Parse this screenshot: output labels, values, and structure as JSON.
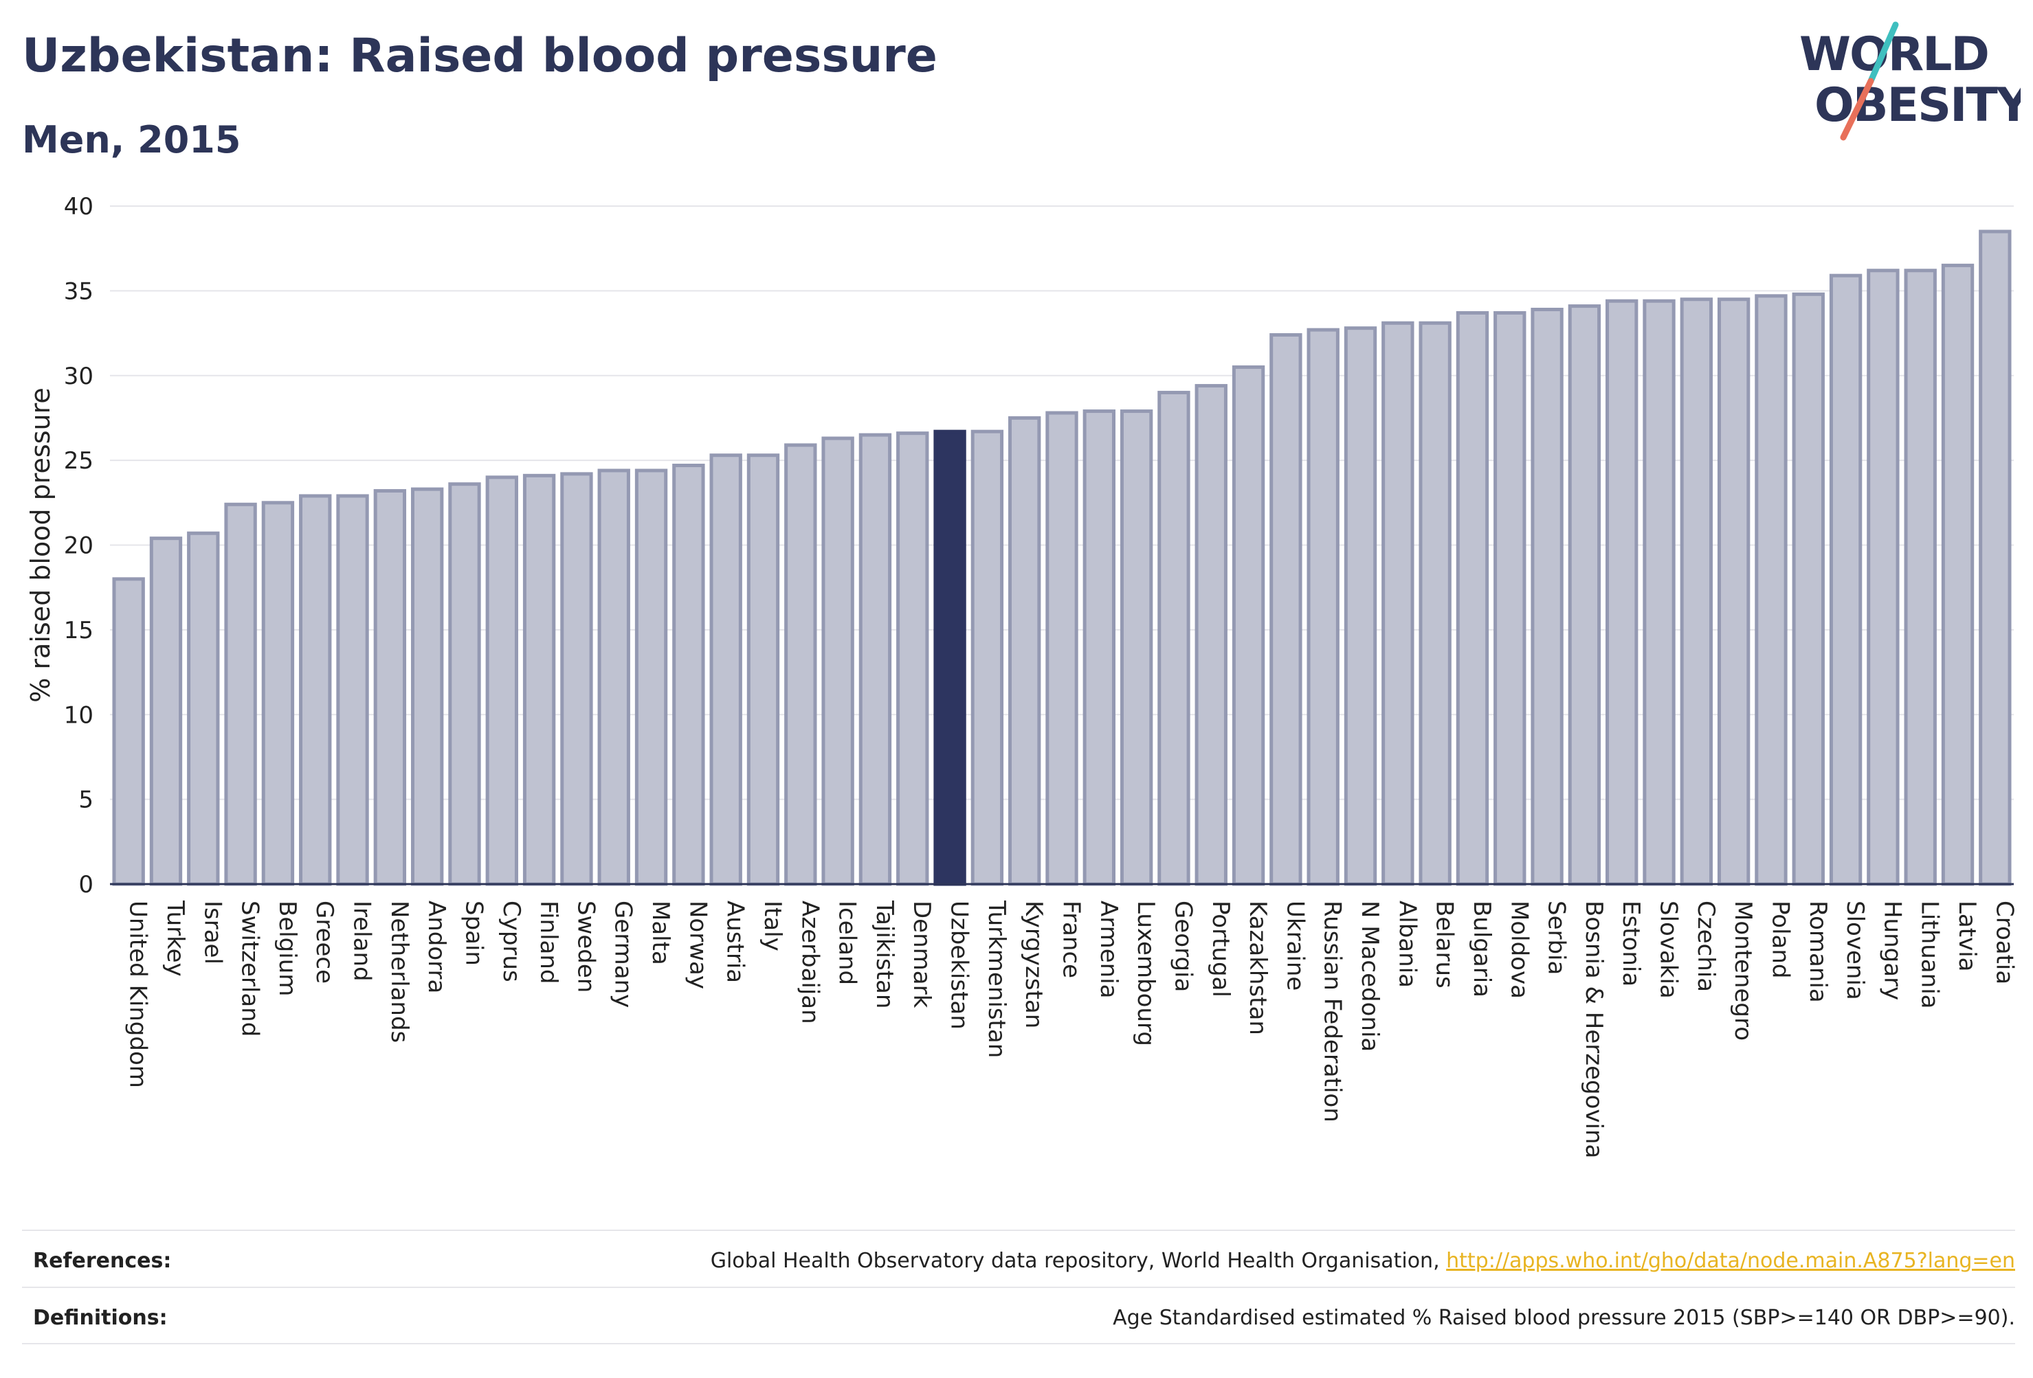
{
  "header": {
    "title": "Uzbekistan: Raised blood pressure",
    "subtitle": "Men, 2015"
  },
  "logo": {
    "line1": "WORLD",
    "line2": "OBESITY",
    "colors": {
      "text": "#2d3558",
      "slash_top": "#3fbfbf",
      "slash_bottom": "#e8705a"
    }
  },
  "chart_data": {
    "type": "bar",
    "ylabel": "% raised blood pressure",
    "ylim": [
      0,
      40
    ],
    "yticks": [
      0,
      5,
      10,
      15,
      20,
      25,
      30,
      35,
      40
    ],
    "grid": true,
    "highlight": "Uzbekistan",
    "colors": {
      "bar": "#bfc2d1",
      "bar_edge": "#9499b2",
      "highlight": "#2d3560",
      "grid": "#e5e5ea",
      "axis": "#2d3558"
    },
    "categories": [
      "United Kingdom",
      "Turkey",
      "Israel",
      "Switzerland",
      "Belgium",
      "Greece",
      "Ireland",
      "Netherlands",
      "Andorra",
      "Spain",
      "Cyprus",
      "Finland",
      "Sweden",
      "Germany",
      "Malta",
      "Norway",
      "Austria",
      "Italy",
      "Azerbaijan",
      "Iceland",
      "Tajikistan",
      "Denmark",
      "Uzbekistan",
      "Turkmenistan",
      "Kyrgyzstan",
      "France",
      "Armenia",
      "Luxembourg",
      "Georgia",
      "Portugal",
      "Kazakhstan",
      "Ukraine",
      "Russian Federation",
      "N Macedonia",
      "Albania",
      "Belarus",
      "Bulgaria",
      "Moldova",
      "Serbia",
      "Bosnia & Herzegovina",
      "Estonia",
      "Slovakia",
      "Czechia",
      "Montenegro",
      "Poland",
      "Romania",
      "Slovenia",
      "Hungary",
      "Lithuania",
      "Latvia",
      "Croatia"
    ],
    "values": [
      18.0,
      20.4,
      20.7,
      22.4,
      22.5,
      22.9,
      22.9,
      23.2,
      23.3,
      23.6,
      24.0,
      24.1,
      24.2,
      24.4,
      24.4,
      24.7,
      25.3,
      25.3,
      25.9,
      26.3,
      26.5,
      26.6,
      26.7,
      26.7,
      27.5,
      27.8,
      27.9,
      27.9,
      29.0,
      29.4,
      30.5,
      32.4,
      32.7,
      32.8,
      33.1,
      33.1,
      33.7,
      33.7,
      33.9,
      34.1,
      34.4,
      34.4,
      34.5,
      34.5,
      34.7,
      34.8,
      35.9,
      36.2,
      36.2,
      36.5,
      38.5
    ]
  },
  "footer": {
    "references_label": "References:",
    "references_text": "Global Health Observatory data repository, World Health Organisation, ",
    "references_link": "http://apps.who.int/gho/data/node.main.A875?lang=en",
    "definitions_label": "Definitions:",
    "definitions_text": "Age Standardised estimated % Raised blood pressure 2015 (SBP>=140 OR DBP>=90)."
  }
}
